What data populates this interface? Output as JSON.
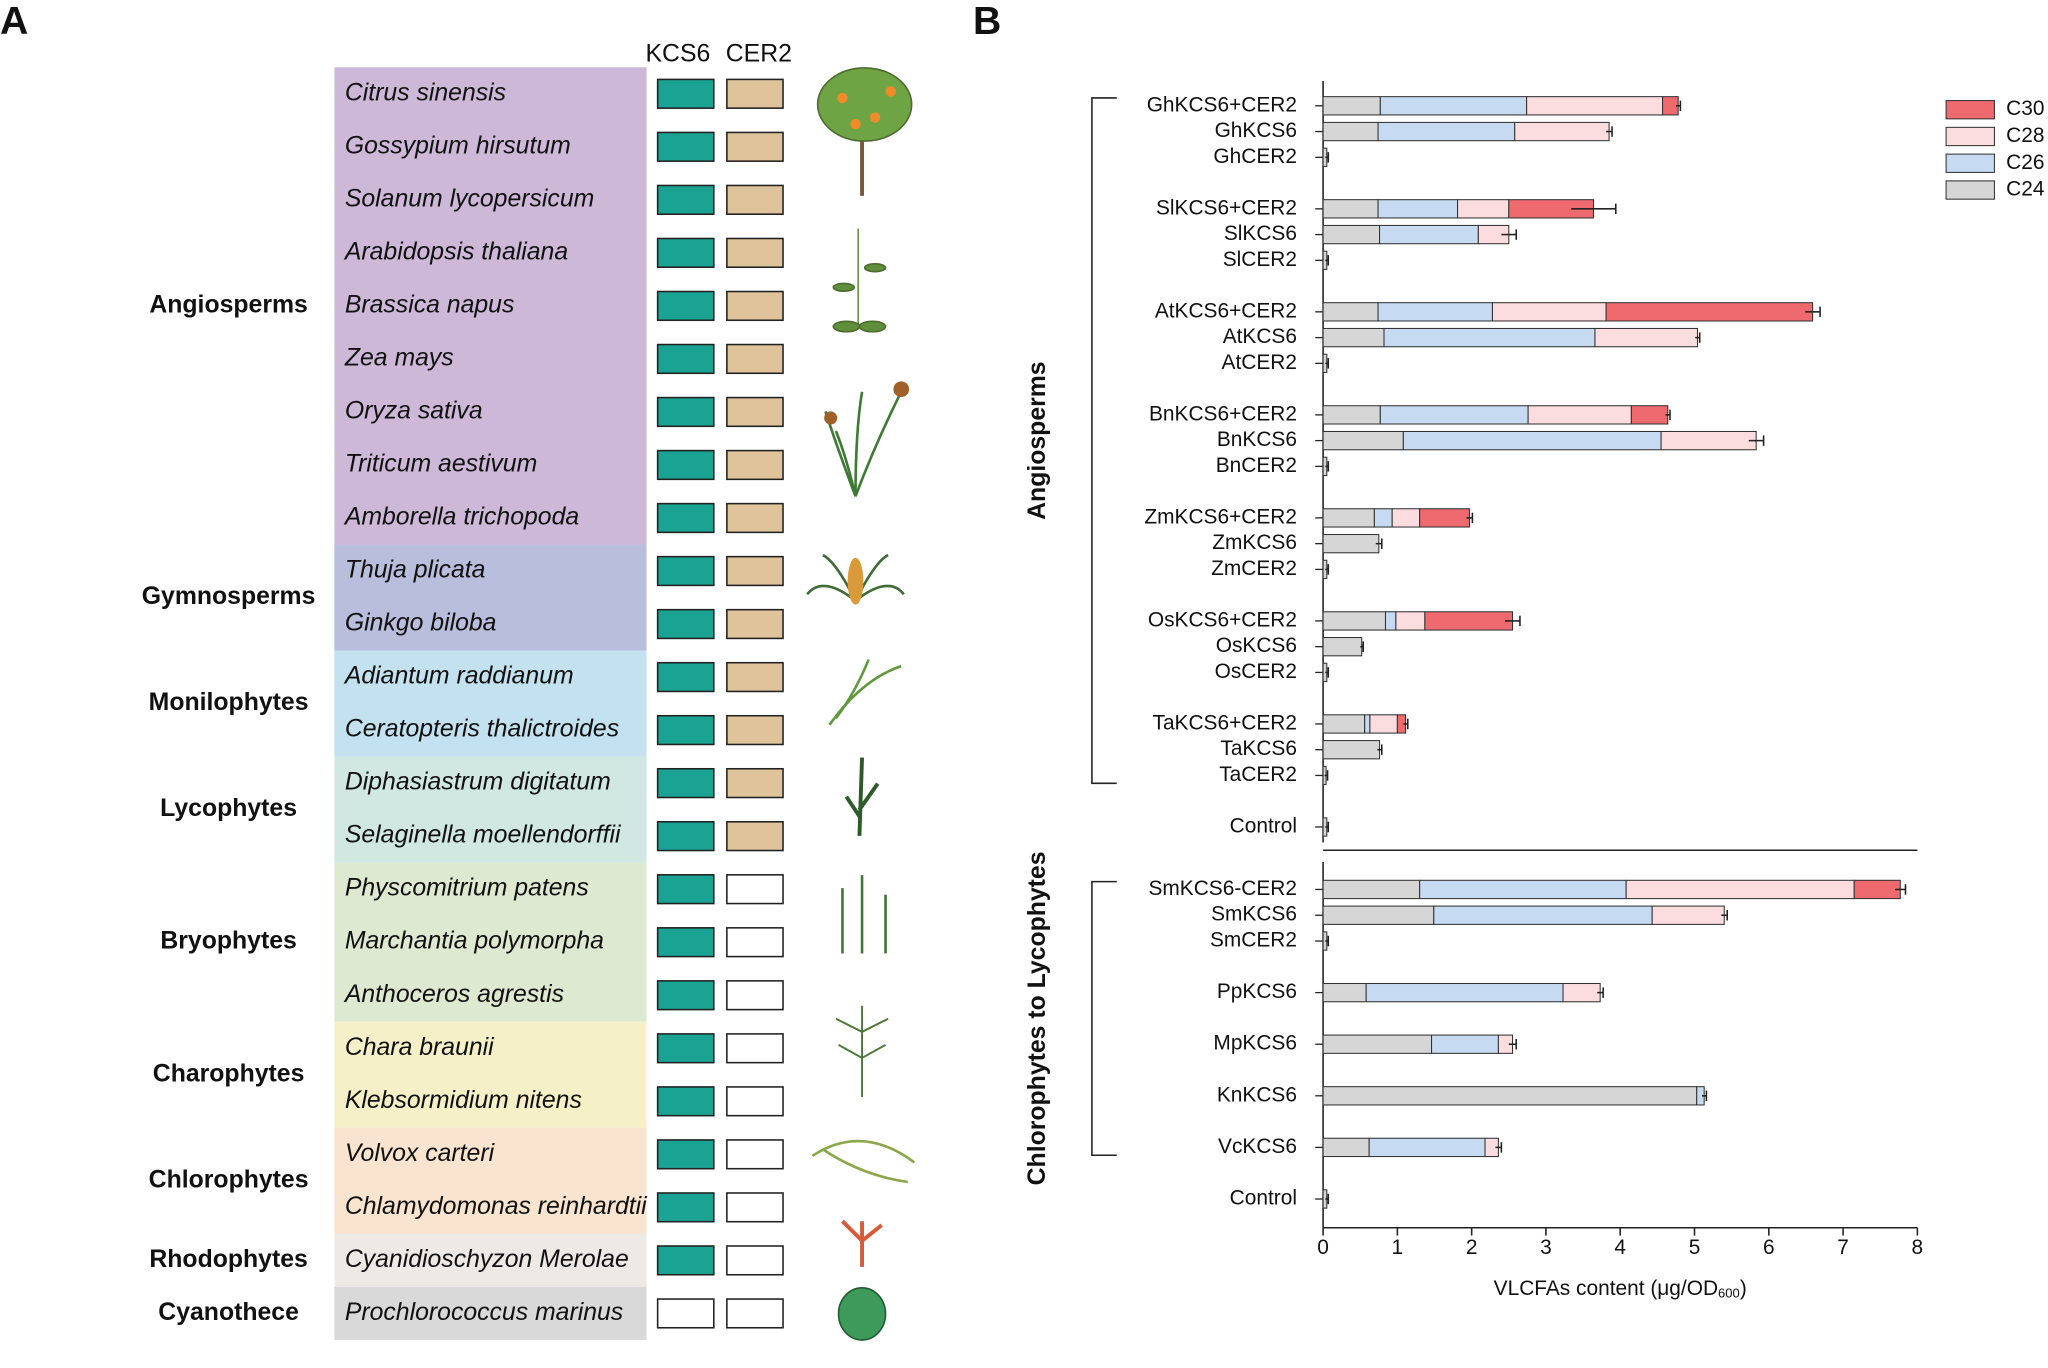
{
  "panel_a": {
    "label": "A",
    "headers": [
      "KCS6",
      "CER2"
    ],
    "groups": [
      {
        "name": "Angiosperms",
        "color": "#cdb8d8",
        "species": [
          {
            "name": "Citrus sinensis",
            "kcs6": true,
            "cer2": true
          },
          {
            "name": "Gossypium hirsutum",
            "kcs6": true,
            "cer2": true
          },
          {
            "name": "Solanum lycopersicum",
            "kcs6": true,
            "cer2": true
          },
          {
            "name": "Arabidopsis thaliana",
            "kcs6": true,
            "cer2": true
          },
          {
            "name": "Brassica napus",
            "kcs6": true,
            "cer2": true
          },
          {
            "name": "Zea mays",
            "kcs6": true,
            "cer2": true
          },
          {
            "name": "Oryza sativa",
            "kcs6": true,
            "cer2": true
          },
          {
            "name": "Triticum aestivum",
            "kcs6": true,
            "cer2": true
          },
          {
            "name": "Amborella trichopoda",
            "kcs6": true,
            "cer2": true
          }
        ]
      },
      {
        "name": "Gymnosperms",
        "color": "#b9bedc",
        "species": [
          {
            "name": "Thuja plicata",
            "kcs6": true,
            "cer2": true
          },
          {
            "name": "Ginkgo biloba",
            "kcs6": true,
            "cer2": true
          }
        ]
      },
      {
        "name": "Monilophytes",
        "color": "#c3e1ee",
        "species": [
          {
            "name": "Adiantum raddianum",
            "kcs6": true,
            "cer2": true
          },
          {
            "name": "Ceratopteris thalictroides",
            "kcs6": true,
            "cer2": true
          }
        ]
      },
      {
        "name": "Lycophytes",
        "color": "#d0e7e2",
        "species": [
          {
            "name": "Diphasiastrum digitatum",
            "kcs6": true,
            "cer2": true
          },
          {
            "name": "Selaginella moellendorffii",
            "kcs6": true,
            "cer2": true
          }
        ]
      },
      {
        "name": "Bryophytes",
        "color": "#dee9d1",
        "species": [
          {
            "name": "Physcomitrium patens",
            "kcs6": true,
            "cer2": false
          },
          {
            "name": "Marchantia polymorpha",
            "kcs6": true,
            "cer2": false
          },
          {
            "name": "Anthoceros agrestis",
            "kcs6": true,
            "cer2": false
          }
        ]
      },
      {
        "name": "Charophytes",
        "color": "#f6f0c9",
        "species": [
          {
            "name": "Chara braunii",
            "kcs6": true,
            "cer2": false
          },
          {
            "name": "Klebsormidium nitens",
            "kcs6": true,
            "cer2": false
          }
        ]
      },
      {
        "name": "Chlorophytes",
        "color": "#f8e4cf",
        "species": [
          {
            "name": "Volvox carteri",
            "kcs6": true,
            "cer2": false
          },
          {
            "name": "Chlamydomonas reinhardtii",
            "kcs6": true,
            "cer2": false
          }
        ]
      },
      {
        "name": "Rhodophytes",
        "color": "#ede9e5",
        "species": [
          {
            "name": "Cyanidioschyzon Merolae",
            "kcs6": true,
            "cer2": false
          }
        ]
      },
      {
        "name": "Cyanothece",
        "color": "#d9d9d9",
        "species": [
          {
            "name": "Prochlorococcus marinus",
            "kcs6": false,
            "cer2": false
          }
        ]
      }
    ]
  },
  "panel_b_label": "B",
  "chart_data": [
    {
      "type": "bar",
      "orientation": "horizontal",
      "stacked": true,
      "group_label": "Angiosperms",
      "legend": "upper right",
      "xlim": [
        0,
        8
      ],
      "categories": [
        "GhKCS6+CER2",
        "GhKCS6",
        "GhCER2",
        null,
        "SlKCS6+CER2",
        "SlKCS6",
        "SlCER2",
        null,
        "AtKCS6+CER2",
        "AtKCS6",
        "AtCER2",
        null,
        "BnKCS6+CER2",
        "BnKCS6",
        "BnCER2",
        null,
        "ZmKCS6+CER2",
        "ZmKCS6",
        "ZmCER2",
        null,
        "OsKCS6+CER2",
        "OsKCS6",
        "OsCER2",
        null,
        "TaKCS6+CER2",
        "TaKCS6",
        "TaCER2",
        null,
        "Control"
      ],
      "series": [
        {
          "name": "C24",
          "color": "#d6d6d6",
          "values": [
            0.77,
            0.74,
            0.05,
            null,
            0.74,
            0.76,
            0.05,
            null,
            0.74,
            0.82,
            0.05,
            null,
            0.77,
            1.08,
            0.05,
            null,
            0.69,
            0.75,
            0.05,
            null,
            0.84,
            0.52,
            0.05,
            null,
            0.56,
            0.76,
            0.04,
            null,
            0.05
          ]
        },
        {
          "name": "C26",
          "color": "#c6daf1",
          "values": [
            1.97,
            1.84,
            0,
            null,
            1.07,
            1.33,
            0,
            null,
            1.54,
            2.84,
            0,
            null,
            1.99,
            3.47,
            0,
            null,
            0.24,
            0,
            0,
            null,
            0.14,
            0,
            0,
            null,
            0.07,
            0,
            0,
            null,
            0
          ]
        },
        {
          "name": "C28",
          "color": "#fbdcdf",
          "values": [
            1.83,
            1.27,
            0,
            null,
            0.69,
            0.41,
            0,
            null,
            1.53,
            1.38,
            0,
            null,
            1.39,
            1.28,
            0,
            null,
            0.37,
            0,
            0,
            null,
            0.39,
            0,
            0,
            null,
            0.37,
            0,
            0,
            null,
            0
          ]
        },
        {
          "name": "C30",
          "color": "#ee6a6f",
          "values": [
            0.21,
            0,
            0,
            null,
            1.14,
            0,
            0,
            null,
            2.78,
            0,
            0,
            null,
            0.49,
            0,
            0,
            null,
            0.67,
            0,
            0,
            null,
            1.18,
            0,
            0,
            null,
            0.11,
            0,
            0,
            null,
            0
          ]
        }
      ],
      "errors": [
        0.03,
        0.04,
        0.02,
        null,
        0.3,
        0.1,
        0.02,
        null,
        0.1,
        0.03,
        0.02,
        null,
        0.03,
        0.1,
        0.02,
        null,
        0.04,
        0.04,
        0.02,
        null,
        0.1,
        0.02,
        0.02,
        null,
        0.03,
        0.03,
        0.02,
        null,
        0.02
      ]
    },
    {
      "type": "bar",
      "orientation": "horizontal",
      "stacked": true,
      "group_label": "Chlorophytes to Lycophytes",
      "xlim": [
        0,
        8
      ],
      "xticks": [
        0,
        1,
        2,
        3,
        4,
        5,
        6,
        7,
        8
      ],
      "xlabel": {
        "text": "VLCFAs content (μg/OD",
        "subscript": "600",
        "end": ")"
      },
      "categories": [
        "SmKCS6-CER2",
        "SmKCS6",
        "SmCER2",
        null,
        "PpKCS6",
        null,
        "MpKCS6",
        null,
        "KnKCS6",
        null,
        "VcKCS6",
        null,
        "Control"
      ],
      "series": [
        {
          "color": "#d6d6d6",
          "values": [
            1.3,
            1.49,
            0.05,
            null,
            0.58,
            null,
            1.46,
            null,
            5.03,
            null,
            0.62,
            null,
            0.05
          ]
        },
        {
          "color": "#c6daf1",
          "values": [
            2.78,
            2.94,
            0,
            null,
            2.65,
            null,
            0.9,
            null,
            0.1,
            null,
            1.56,
            null,
            0
          ]
        },
        {
          "color": "#fbdcdf",
          "values": [
            3.07,
            0.97,
            0,
            null,
            0.5,
            null,
            0.19,
            null,
            0,
            null,
            0.18,
            null,
            0
          ]
        },
        {
          "color": "#ee6a6f",
          "values": [
            0.62,
            0,
            0,
            null,
            0,
            null,
            0,
            null,
            0,
            null,
            0,
            null,
            0
          ]
        }
      ],
      "errors": [
        0.07,
        0.04,
        0.02,
        null,
        0.04,
        null,
        0.05,
        null,
        0.03,
        null,
        0.04,
        null,
        0.02
      ]
    }
  ]
}
